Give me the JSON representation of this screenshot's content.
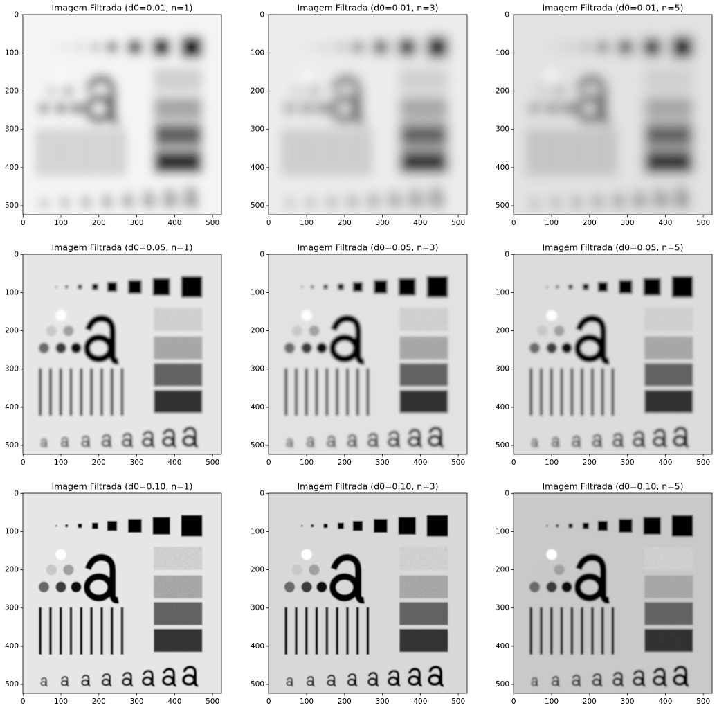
{
  "chart_data": [
    {
      "type": "image",
      "title": "Imagem Filtrada (d0=0.01, n=1)",
      "xlim": [
        -0.5,
        523.5
      ],
      "ylim": [
        523.5,
        -0.5
      ],
      "xticks": [
        0,
        100,
        200,
        300,
        400,
        500
      ],
      "yticks": [
        0,
        100,
        200,
        300,
        400,
        500
      ]
    },
    {
      "type": "image",
      "title": "Imagem Filtrada (d0=0.01, n=3)",
      "xlim": [
        -0.5,
        523.5
      ],
      "ylim": [
        523.5,
        -0.5
      ],
      "xticks": [
        0,
        100,
        200,
        300,
        400,
        500
      ],
      "yticks": [
        0,
        100,
        200,
        300,
        400,
        500
      ]
    },
    {
      "type": "image",
      "title": "Imagem Filtrada (d0=0.01, n=5)",
      "xlim": [
        -0.5,
        523.5
      ],
      "ylim": [
        523.5,
        -0.5
      ],
      "xticks": [
        0,
        100,
        200,
        300,
        400,
        500
      ],
      "yticks": [
        0,
        100,
        200,
        300,
        400,
        500
      ]
    },
    {
      "type": "image",
      "title": "Imagem Filtrada (d0=0.05, n=1)",
      "xlim": [
        -0.5,
        523.5
      ],
      "ylim": [
        523.5,
        -0.5
      ],
      "xticks": [
        0,
        100,
        200,
        300,
        400,
        500
      ],
      "yticks": [
        0,
        100,
        200,
        300,
        400,
        500
      ]
    },
    {
      "type": "image",
      "title": "Imagem Filtrada (d0=0.05, n=3)",
      "xlim": [
        -0.5,
        523.5
      ],
      "ylim": [
        523.5,
        -0.5
      ],
      "xticks": [
        0,
        100,
        200,
        300,
        400,
        500
      ],
      "yticks": [
        0,
        100,
        200,
        300,
        400,
        500
      ]
    },
    {
      "type": "image",
      "title": "Imagem Filtrada (d0=0.05, n=5)",
      "xlim": [
        -0.5,
        523.5
      ],
      "ylim": [
        523.5,
        -0.5
      ],
      "xticks": [
        0,
        100,
        200,
        300,
        400,
        500
      ],
      "yticks": [
        0,
        100,
        200,
        300,
        400,
        500
      ]
    },
    {
      "type": "image",
      "title": "Imagem Filtrada (d0=0.10, n=1)",
      "xlim": [
        -0.5,
        523.5
      ],
      "ylim": [
        523.5,
        -0.5
      ],
      "xticks": [
        0,
        100,
        200,
        300,
        400,
        500
      ],
      "yticks": [
        0,
        100,
        200,
        300,
        400,
        500
      ]
    },
    {
      "type": "image",
      "title": "Imagem Filtrada (d0=0.10, n=3)",
      "xlim": [
        -0.5,
        523.5
      ],
      "ylim": [
        523.5,
        -0.5
      ],
      "xticks": [
        0,
        100,
        200,
        300,
        400,
        500
      ],
      "yticks": [
        0,
        100,
        200,
        300,
        400,
        500
      ]
    },
    {
      "type": "image",
      "title": "Imagem Filtrada (d0=0.10, n=5)",
      "xlim": [
        -0.5,
        523.5
      ],
      "ylim": [
        523.5,
        -0.5
      ],
      "xticks": [
        0,
        100,
        200,
        300,
        400,
        500
      ],
      "yticks": [
        0,
        100,
        200,
        300,
        400,
        500
      ]
    }
  ]
}
